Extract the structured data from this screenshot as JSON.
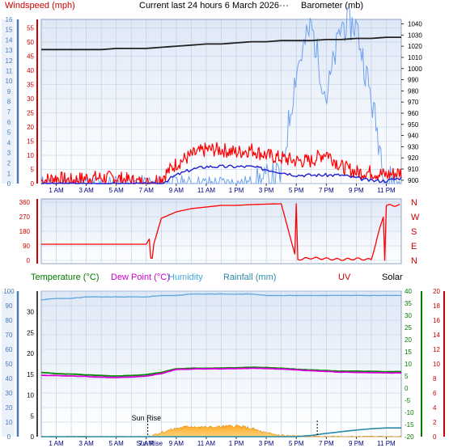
{
  "header": {
    "left": "Windspeed (mph)",
    "center": "Current last 24 hours 6 March 2026",
    "right": "Barometer (mb)"
  },
  "x_ticks": [
    "1 AM",
    "3 AM",
    "5 AM",
    "7 AM",
    "9 AM",
    "11 AM",
    "1 PM",
    "3 PM",
    "5 PM",
    "7 PM",
    "9 PM",
    "11 PM"
  ],
  "chart_data": [
    {
      "type": "line",
      "title": "Current last 24 hours 6 March 2026",
      "x": [
        0,
        1,
        2,
        3,
        4,
        5,
        6,
        7,
        8,
        9,
        10,
        11,
        12,
        13,
        14,
        15,
        16,
        17,
        18,
        19,
        20,
        21,
        22,
        23,
        24
      ],
      "axes": {
        "bft_left": {
          "ticks": [
            0,
            1,
            2,
            3,
            4,
            5,
            6,
            7,
            8,
            9,
            10,
            11,
            12,
            13,
            14,
            15,
            16
          ]
        },
        "windspeed_left": {
          "label": "Windspeed (mph)",
          "range": [
            0,
            58
          ],
          "ticks": [
            0,
            5,
            10,
            15,
            20,
            25,
            30,
            35,
            40,
            45,
            50,
            55
          ]
        },
        "barometer_right": {
          "label": "Barometer (mb)",
          "range": [
            897,
            1044
          ],
          "ticks": [
            900,
            910,
            920,
            930,
            940,
            950,
            960,
            970,
            980,
            990,
            1000,
            1010,
            1020,
            1030,
            1040
          ]
        }
      },
      "series": [
        {
          "name": "Windspeed (mph)",
          "color": "#ff0000",
          "values": [
            1,
            2,
            1,
            2,
            2,
            2,
            1,
            0,
            2,
            7,
            10,
            12,
            12,
            11,
            12,
            10,
            9,
            8,
            8,
            11,
            6,
            4,
            4,
            3,
            4
          ]
        },
        {
          "color": "#2020d0",
          "values": [
            0,
            0,
            0,
            0,
            0,
            0,
            0,
            0,
            0,
            3,
            5,
            6,
            6,
            6,
            6,
            5,
            4,
            3,
            3,
            3,
            3,
            2,
            1,
            1,
            2
          ]
        },
        {
          "color": "#6fa0ee",
          "values": [
            0,
            0,
            0,
            0,
            0,
            0,
            0,
            0,
            0,
            0,
            0,
            0,
            0,
            0,
            0,
            1,
            3,
            40,
            56,
            30,
            56,
            56,
            30,
            1,
            1
          ]
        },
        {
          "name": "Barometer (mb)",
          "color": "#222222",
          "values": [
            1017,
            1017,
            1017,
            1017,
            1017,
            1018,
            1018,
            1018,
            1019,
            1020,
            1021,
            1022,
            1022,
            1023,
            1024,
            1024,
            1025,
            1025,
            1025,
            1026,
            1026,
            1027,
            1027,
            1028,
            1028
          ]
        }
      ],
      "grid": true
    },
    {
      "type": "line",
      "x": [
        0,
        1,
        2,
        3,
        4,
        5,
        6,
        7,
        8,
        9,
        10,
        11,
        12,
        13,
        14,
        15,
        16,
        17,
        18,
        19,
        20,
        21,
        22,
        23,
        24
      ],
      "axes": {
        "direction_left": {
          "range": [
            0,
            360
          ],
          "ticks": [
            0,
            90,
            180,
            270,
            360
          ]
        },
        "compass_right": [
          "N",
          "W",
          "S",
          "E",
          "N"
        ]
      },
      "series": [
        {
          "name": "Wind direction",
          "color": "#ff0000",
          "values": [
            100,
            100,
            100,
            100,
            100,
            100,
            100,
            100,
            260,
            300,
            320,
            330,
            340,
            340,
            345,
            348,
            350,
            5,
            15,
            10,
            5,
            10,
            5,
            340,
            340
          ]
        }
      ],
      "grid": true
    },
    {
      "type": "line",
      "legend": [
        "Temperature (°C)",
        "Dew Point (°C)",
        "Humidity",
        "Rainfall (mm)",
        "UV",
        "Solar"
      ],
      "x": [
        0,
        1,
        2,
        3,
        4,
        5,
        6,
        7,
        8,
        9,
        10,
        11,
        12,
        13,
        14,
        15,
        16,
        17,
        18,
        19,
        20,
        21,
        22,
        23,
        24
      ],
      "axes": {
        "humidity_left": {
          "range": [
            0,
            100
          ],
          "ticks": [
            0,
            10,
            20,
            30,
            40,
            50,
            60,
            70,
            80,
            90,
            100
          ]
        },
        "rain_left": {
          "range": [
            0,
            35
          ],
          "ticks": [
            0,
            5,
            10,
            15,
            20,
            25,
            30
          ]
        },
        "temperature_right": {
          "range": [
            -20,
            40
          ],
          "ticks": [
            -20,
            -15,
            -10,
            -5,
            0,
            5,
            10,
            15,
            20,
            25,
            30,
            35,
            40
          ]
        },
        "uv_right": {
          "range": [
            0,
            20
          ],
          "ticks": [
            0,
            2,
            4,
            6,
            8,
            10,
            12,
            14,
            16,
            18,
            20
          ]
        }
      },
      "annotations": [
        {
          "text": "Sun Rise",
          "x": 7.1
        },
        {
          "text": "Sun Fall",
          "x": 18.4
        }
      ],
      "series": [
        {
          "name": "Humidity",
          "color": "#66aadd",
          "values": [
            94,
            95,
            95,
            96,
            96,
            96,
            96,
            96,
            97,
            97,
            98,
            98,
            98,
            98,
            98,
            97,
            97,
            97,
            97,
            97,
            97,
            97,
            97,
            97,
            97
          ]
        },
        {
          "name": "Temperature (°C)",
          "color": "#008800",
          "values": [
            6.5,
            6.0,
            5.8,
            5.5,
            5.2,
            5.0,
            5.2,
            5.6,
            6.5,
            8.0,
            8.2,
            8.2,
            8.3,
            8.4,
            8.6,
            8.5,
            8.2,
            7.8,
            7.5,
            7.2,
            7.0,
            7.0,
            6.9,
            6.8,
            6.8
          ]
        },
        {
          "name": "Dew Point (°C)",
          "color": "#dd00dd",
          "values": [
            5.3,
            5.2,
            5.0,
            4.8,
            4.5,
            4.4,
            4.6,
            5.0,
            6.0,
            7.7,
            7.9,
            8.0,
            8.0,
            8.1,
            8.2,
            8.1,
            7.9,
            7.5,
            7.2,
            6.9,
            6.6,
            6.5,
            6.4,
            6.3,
            6.3
          ]
        },
        {
          "name": "Rainfall (mm)",
          "color": "#2a8aaa",
          "values": [
            0,
            0,
            0,
            0,
            0,
            0,
            0,
            0,
            0,
            0,
            0,
            0,
            0,
            0,
            0,
            0,
            0,
            0,
            0.3,
            0.8,
            1.2,
            1.6,
            1.9,
            2.1,
            2.1
          ]
        },
        {
          "name": "Solar",
          "color": "#f5a020",
          "values": [
            0,
            0,
            0,
            0,
            0,
            0,
            0,
            0,
            1.0,
            2.0,
            2.5,
            2.2,
            2.4,
            2.6,
            2.0,
            0.8,
            0.3,
            0.1,
            0,
            0,
            0,
            0,
            0,
            0,
            0
          ]
        }
      ],
      "grid": true
    }
  ],
  "colors": {
    "panel_bg_top": "#dfe8f6",
    "panel_bg_bottom": "#ffffff",
    "grid": "#b8cbe2",
    "wind_axis": "#cc0000",
    "temp_axis": "#007700",
    "uv_axis": "#cc0000"
  }
}
